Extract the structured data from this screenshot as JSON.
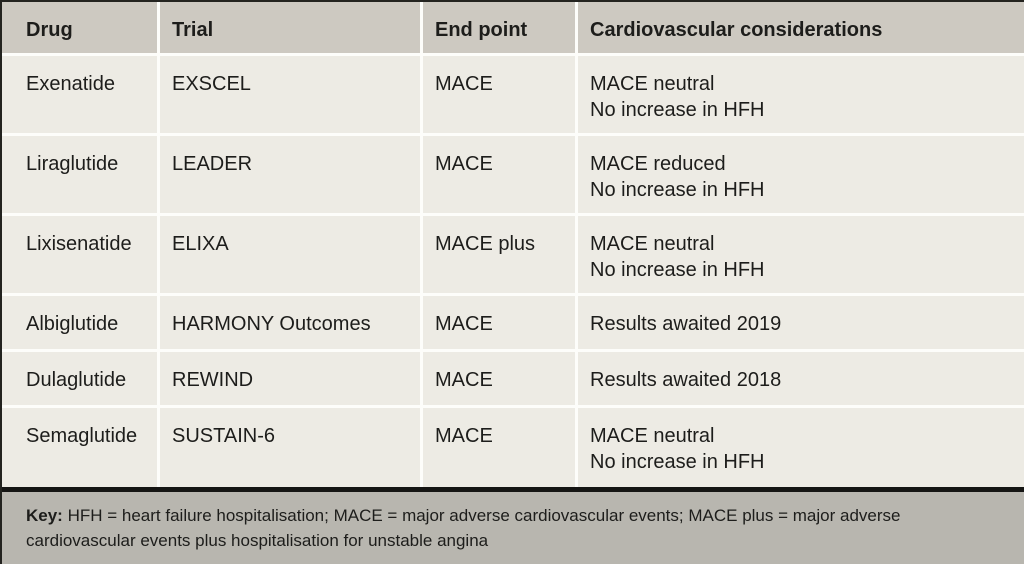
{
  "table": {
    "columns": [
      {
        "label": "Drug"
      },
      {
        "label": "Trial"
      },
      {
        "label": "End point"
      },
      {
        "label": "Cardiovascular considerations"
      }
    ],
    "rows": [
      {
        "drug": "Exenatide",
        "trial": "EXSCEL",
        "endpoint": "MACE",
        "considerations": [
          "MACE neutral",
          "No increase in HFH"
        ]
      },
      {
        "drug": "Liraglutide",
        "trial": "LEADER",
        "endpoint": "MACE",
        "considerations": [
          "MACE reduced",
          "No increase in HFH"
        ]
      },
      {
        "drug": "Lixisenatide",
        "trial": "ELIXA",
        "endpoint": "MACE plus",
        "considerations": [
          "MACE neutral",
          "No increase in HFH"
        ]
      },
      {
        "drug": "Albiglutide",
        "trial": "HARMONY Outcomes",
        "endpoint": "MACE",
        "considerations": [
          "Results awaited 2019"
        ]
      },
      {
        "drug": "Dulaglutide",
        "trial": "REWIND",
        "endpoint": "MACE",
        "considerations": [
          "Results awaited 2018"
        ]
      },
      {
        "drug": "Semaglutide",
        "trial": "SUSTAIN-6",
        "endpoint": "MACE",
        "considerations": [
          "MACE neutral",
          "No increase in HFH"
        ]
      }
    ]
  },
  "key": {
    "label": "Key:",
    "text": " HFH = heart failure hospitalisation; MACE = major adverse cardiovascular events; MACE plus = major adverse cardiovascular events plus hospitalisation for unstable angina"
  },
  "colors": {
    "header_bg": "#cdc9c1",
    "row_bg": "#edebe4",
    "key_bg": "#b8b6af",
    "separator": "#fdfdfa",
    "frame_border": "#23231f",
    "text": "#1d1d1b"
  },
  "chart_data": {
    "type": "table",
    "title": "",
    "columns": [
      "Drug",
      "Trial",
      "End point",
      "Cardiovascular considerations"
    ],
    "rows": [
      [
        "Exenatide",
        "EXSCEL",
        "MACE",
        "MACE neutral; No increase in HFH"
      ],
      [
        "Liraglutide",
        "LEADER",
        "MACE",
        "MACE reduced; No increase in HFH"
      ],
      [
        "Lixisenatide",
        "ELIXA",
        "MACE plus",
        "MACE neutral; No increase in HFH"
      ],
      [
        "Albiglutide",
        "HARMONY Outcomes",
        "MACE",
        "Results awaited 2019"
      ],
      [
        "Dulaglutide",
        "REWIND",
        "MACE",
        "Results awaited 2018"
      ],
      [
        "Semaglutide",
        "SUSTAIN-6",
        "MACE",
        "MACE neutral; No increase in HFH"
      ]
    ]
  }
}
